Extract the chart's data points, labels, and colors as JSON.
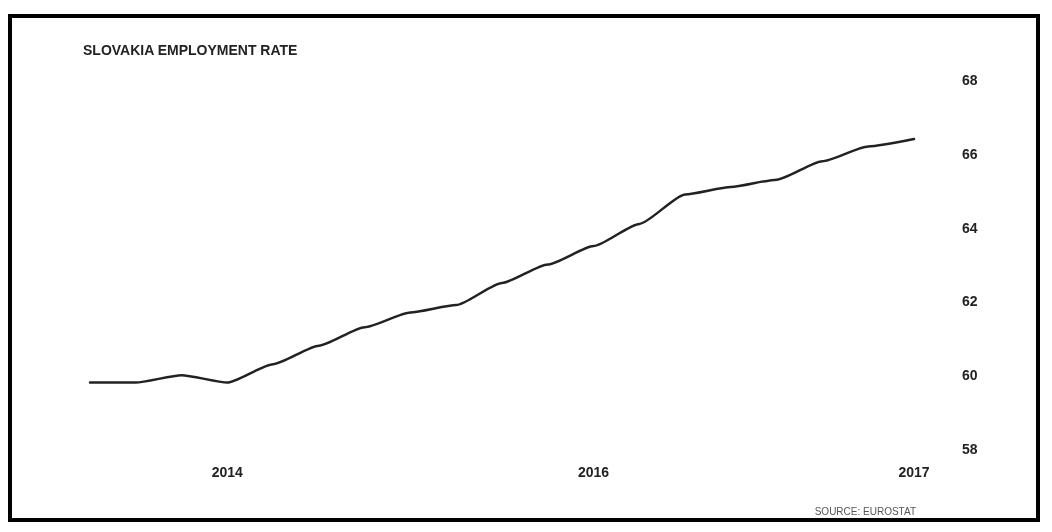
{
  "chart_data": {
    "type": "line",
    "title": "SLOVAKIA EMPLOYMENT RATE",
    "annotations": [
      "SOURCE: EUROSTAT"
    ],
    "categories": [
      null,
      null,
      null,
      "2014",
      null,
      null,
      null,
      null,
      null,
      null,
      null,
      "2016",
      null,
      null,
      null,
      null,
      null,
      null,
      "2017"
    ],
    "series": [
      {
        "color": "#222222",
        "values": [
          59.8,
          59.8,
          60.0,
          59.8,
          60.3,
          60.8,
          61.3,
          61.7,
          61.9,
          62.5,
          63.0,
          63.5,
          64.1,
          64.9,
          65.1,
          65.3,
          65.8,
          66.2,
          66.4
        ]
      }
    ],
    "ylim": [
      58,
      68
    ],
    "yticks": [
      58,
      60,
      62,
      64,
      66,
      68
    ],
    "grid": false,
    "marker": "none",
    "line_style": "solid"
  }
}
